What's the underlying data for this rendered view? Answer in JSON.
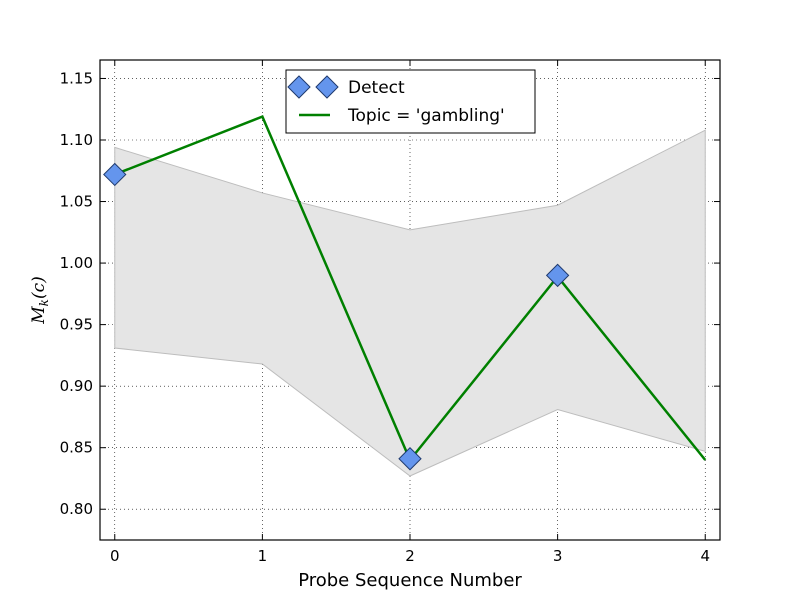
{
  "chart_data": {
    "type": "line",
    "xlabel": "Probe Sequence Number",
    "ylabel": "M̂k(c)",
    "ylabel_parts": {
      "base": "M",
      "sub": "k",
      "arg": "(c)"
    },
    "xlim": [
      -0.1,
      4.1
    ],
    "ylim": [
      0.775,
      1.165
    ],
    "xticks": [
      0,
      1,
      2,
      3,
      4
    ],
    "yticks": [
      0.8,
      0.85,
      0.9,
      0.95,
      1.0,
      1.05,
      1.1,
      1.15
    ],
    "xtick_labels": [
      "0",
      "1",
      "2",
      "3",
      "4"
    ],
    "ytick_labels": [
      "0.80",
      "0.85",
      "0.90",
      "0.95",
      "1.00",
      "1.05",
      "1.10",
      "1.15"
    ],
    "grid": true,
    "legend_position": "top-center",
    "band": {
      "x": [
        0,
        1,
        2,
        3,
        4
      ],
      "lower": [
        0.931,
        0.918,
        0.827,
        0.881,
        0.847
      ],
      "upper": [
        1.094,
        1.057,
        1.027,
        1.047,
        1.108
      ],
      "color": "#e5e5e5",
      "edge_color": "#bdbdbd"
    },
    "series": [
      {
        "name": "Topic = 'gambling'",
        "kind": "line",
        "x": [
          0,
          1,
          2,
          3,
          4
        ],
        "values": [
          1.072,
          1.119,
          0.84,
          0.989,
          0.84
        ],
        "color": "#008000"
      },
      {
        "name": "Detect",
        "kind": "markers",
        "marker": "diamond",
        "x": [
          0,
          2,
          3
        ],
        "values": [
          1.072,
          0.841,
          0.99
        ],
        "color": "#6495ed",
        "edge_color": "#1f3a6e"
      }
    ]
  }
}
